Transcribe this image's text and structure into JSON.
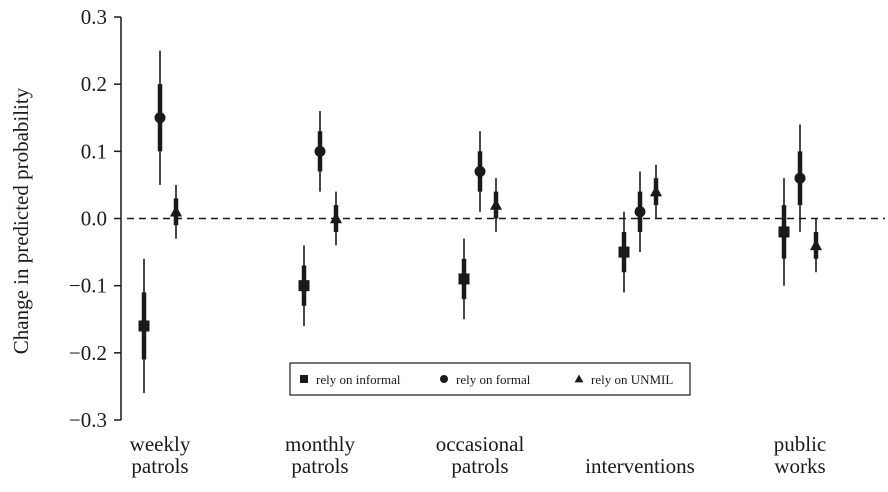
{
  "chart_data": {
    "type": "scatter",
    "ylabel": "Change in predicted probability",
    "ylim": [
      -0.3,
      0.3
    ],
    "yticks": [
      -0.3,
      -0.2,
      -0.1,
      0.0,
      0.1,
      0.2,
      0.3
    ],
    "ytick_labels": [
      "−0.3",
      "−0.2",
      "−0.1",
      "0.0",
      "0.1",
      "0.2",
      "0.3"
    ],
    "reference_line": 0,
    "grid": false,
    "legend_position": "bottom-center",
    "categories": [
      [
        "weekly",
        "patrols"
      ],
      [
        "monthly",
        "patrols"
      ],
      [
        "occasional",
        "patrols"
      ],
      [
        "interventions"
      ],
      [
        "public",
        "works"
      ]
    ],
    "series": [
      {
        "name": "rely on informal",
        "marker": "square",
        "estimates": [
          -0.16,
          -0.1,
          -0.09,
          -0.05,
          -0.02
        ],
        "ci90": [
          [
            -0.21,
            -0.11
          ],
          [
            -0.13,
            -0.07
          ],
          [
            -0.12,
            -0.06
          ],
          [
            -0.08,
            -0.02
          ],
          [
            -0.06,
            0.02
          ]
        ],
        "ci95": [
          [
            -0.26,
            -0.06
          ],
          [
            -0.16,
            -0.04
          ],
          [
            -0.15,
            -0.03
          ],
          [
            -0.11,
            0.01
          ],
          [
            -0.1,
            0.06
          ]
        ]
      },
      {
        "name": "rely on formal",
        "marker": "circle",
        "estimates": [
          0.15,
          0.1,
          0.07,
          0.01,
          0.06
        ],
        "ci90": [
          [
            0.1,
            0.2
          ],
          [
            0.07,
            0.13
          ],
          [
            0.04,
            0.1
          ],
          [
            -0.02,
            0.04
          ],
          [
            0.02,
            0.1
          ]
        ],
        "ci95": [
          [
            0.05,
            0.25
          ],
          [
            0.04,
            0.16
          ],
          [
            0.01,
            0.13
          ],
          [
            -0.05,
            0.07
          ],
          [
            -0.02,
            0.14
          ]
        ]
      },
      {
        "name": "rely on UNMIL",
        "marker": "triangle",
        "estimates": [
          0.01,
          0.0,
          0.02,
          0.04,
          -0.04
        ],
        "ci90": [
          [
            -0.01,
            0.03
          ],
          [
            -0.02,
            0.02
          ],
          [
            0.0,
            0.04
          ],
          [
            0.02,
            0.06
          ],
          [
            -0.06,
            -0.02
          ]
        ],
        "ci95": [
          [
            -0.03,
            0.05
          ],
          [
            -0.04,
            0.04
          ],
          [
            -0.02,
            0.06
          ],
          [
            0.0,
            0.08
          ],
          [
            -0.08,
            0.0
          ]
        ]
      }
    ]
  },
  "colors": {
    "marks": "#1a1a1a",
    "background": "#ffffff"
  }
}
